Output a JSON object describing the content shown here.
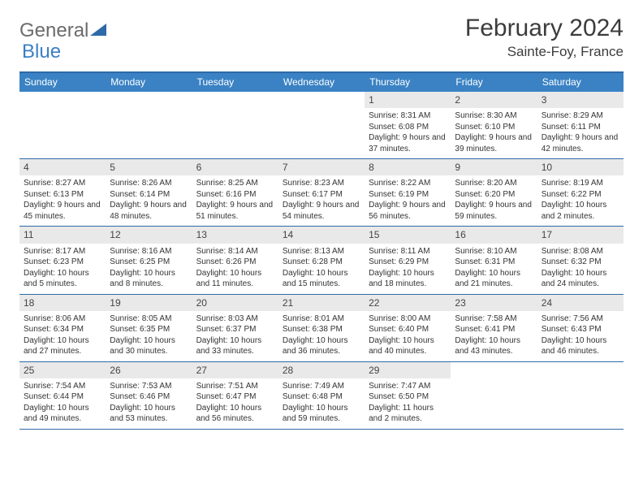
{
  "logo": {
    "text1": "General",
    "text2": "Blue",
    "tri_color": "#2f6aa8"
  },
  "title": "February 2024",
  "location": "Sainte-Foy, France",
  "colors": {
    "header_bg": "#3a82c4",
    "rule": "#2f6aa8",
    "daynum_bg": "#e9e9e9",
    "text": "#333333",
    "logo_gray": "#6b6b6b",
    "logo_blue": "#3a7fc4"
  },
  "dow": [
    "Sunday",
    "Monday",
    "Tuesday",
    "Wednesday",
    "Thursday",
    "Friday",
    "Saturday"
  ],
  "weeks": [
    [
      null,
      null,
      null,
      null,
      {
        "n": "1",
        "sr": "8:31 AM",
        "ss": "6:08 PM",
        "d": "9 hours and 37 minutes."
      },
      {
        "n": "2",
        "sr": "8:30 AM",
        "ss": "6:10 PM",
        "d": "9 hours and 39 minutes."
      },
      {
        "n": "3",
        "sr": "8:29 AM",
        "ss": "6:11 PM",
        "d": "9 hours and 42 minutes."
      }
    ],
    [
      {
        "n": "4",
        "sr": "8:27 AM",
        "ss": "6:13 PM",
        "d": "9 hours and 45 minutes."
      },
      {
        "n": "5",
        "sr": "8:26 AM",
        "ss": "6:14 PM",
        "d": "9 hours and 48 minutes."
      },
      {
        "n": "6",
        "sr": "8:25 AM",
        "ss": "6:16 PM",
        "d": "9 hours and 51 minutes."
      },
      {
        "n": "7",
        "sr": "8:23 AM",
        "ss": "6:17 PM",
        "d": "9 hours and 54 minutes."
      },
      {
        "n": "8",
        "sr": "8:22 AM",
        "ss": "6:19 PM",
        "d": "9 hours and 56 minutes."
      },
      {
        "n": "9",
        "sr": "8:20 AM",
        "ss": "6:20 PM",
        "d": "9 hours and 59 minutes."
      },
      {
        "n": "10",
        "sr": "8:19 AM",
        "ss": "6:22 PM",
        "d": "10 hours and 2 minutes."
      }
    ],
    [
      {
        "n": "11",
        "sr": "8:17 AM",
        "ss": "6:23 PM",
        "d": "10 hours and 5 minutes."
      },
      {
        "n": "12",
        "sr": "8:16 AM",
        "ss": "6:25 PM",
        "d": "10 hours and 8 minutes."
      },
      {
        "n": "13",
        "sr": "8:14 AM",
        "ss": "6:26 PM",
        "d": "10 hours and 11 minutes."
      },
      {
        "n": "14",
        "sr": "8:13 AM",
        "ss": "6:28 PM",
        "d": "10 hours and 15 minutes."
      },
      {
        "n": "15",
        "sr": "8:11 AM",
        "ss": "6:29 PM",
        "d": "10 hours and 18 minutes."
      },
      {
        "n": "16",
        "sr": "8:10 AM",
        "ss": "6:31 PM",
        "d": "10 hours and 21 minutes."
      },
      {
        "n": "17",
        "sr": "8:08 AM",
        "ss": "6:32 PM",
        "d": "10 hours and 24 minutes."
      }
    ],
    [
      {
        "n": "18",
        "sr": "8:06 AM",
        "ss": "6:34 PM",
        "d": "10 hours and 27 minutes."
      },
      {
        "n": "19",
        "sr": "8:05 AM",
        "ss": "6:35 PM",
        "d": "10 hours and 30 minutes."
      },
      {
        "n": "20",
        "sr": "8:03 AM",
        "ss": "6:37 PM",
        "d": "10 hours and 33 minutes."
      },
      {
        "n": "21",
        "sr": "8:01 AM",
        "ss": "6:38 PM",
        "d": "10 hours and 36 minutes."
      },
      {
        "n": "22",
        "sr": "8:00 AM",
        "ss": "6:40 PM",
        "d": "10 hours and 40 minutes."
      },
      {
        "n": "23",
        "sr": "7:58 AM",
        "ss": "6:41 PM",
        "d": "10 hours and 43 minutes."
      },
      {
        "n": "24",
        "sr": "7:56 AM",
        "ss": "6:43 PM",
        "d": "10 hours and 46 minutes."
      }
    ],
    [
      {
        "n": "25",
        "sr": "7:54 AM",
        "ss": "6:44 PM",
        "d": "10 hours and 49 minutes."
      },
      {
        "n": "26",
        "sr": "7:53 AM",
        "ss": "6:46 PM",
        "d": "10 hours and 53 minutes."
      },
      {
        "n": "27",
        "sr": "7:51 AM",
        "ss": "6:47 PM",
        "d": "10 hours and 56 minutes."
      },
      {
        "n": "28",
        "sr": "7:49 AM",
        "ss": "6:48 PM",
        "d": "10 hours and 59 minutes."
      },
      {
        "n": "29",
        "sr": "7:47 AM",
        "ss": "6:50 PM",
        "d": "11 hours and 2 minutes."
      },
      null,
      null
    ]
  ],
  "labels": {
    "sunrise": "Sunrise:",
    "sunset": "Sunset:",
    "daylight": "Daylight:"
  }
}
